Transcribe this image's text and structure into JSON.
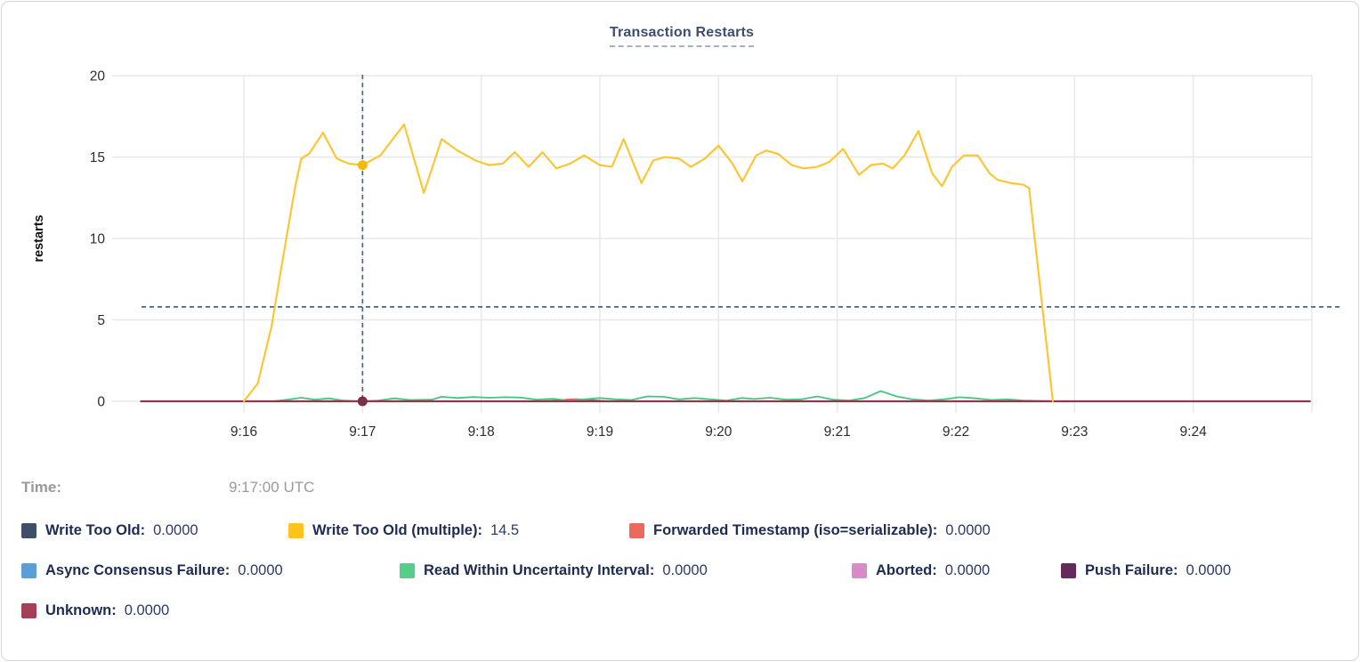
{
  "card": {
    "title": "Transaction Restarts"
  },
  "tooltip": {
    "time_label": "Time:",
    "time_value": "9:17:00 UTC"
  },
  "chart_data": {
    "type": "line",
    "title": "Transaction Restarts",
    "xlabel": "",
    "ylabel": "restarts",
    "ylim": [
      0,
      20
    ],
    "yticks": [
      0,
      5,
      10,
      15,
      20
    ],
    "xticks": [
      "9:16",
      "9:17",
      "9:18",
      "9:19",
      "9:20",
      "9:21",
      "9:22",
      "9:23",
      "9:24"
    ],
    "x_unit": "seconds relative to 9:16:00, x range approx 9:15:08 - 9:25:13",
    "grid": true,
    "legend_position": "bottom",
    "hover": {
      "time": "9:17:00 UTC",
      "t": 60,
      "crosshair_color": "#44678a",
      "guide_value": 5.8,
      "points": [
        {
          "series": "Write Too Old (multiple)",
          "value": 14.5,
          "dot_color": "#f5b90d"
        },
        {
          "series": "Unknown",
          "value": 0,
          "dot_color": "#7c2f47"
        }
      ]
    },
    "series": [
      {
        "name": "Write Too Old",
        "color": "#3f4e69",
        "width": 1.6,
        "points": [
          [
            -52,
            0
          ],
          [
            539,
            0
          ]
        ]
      },
      {
        "name": "Async Consensus Failure",
        "color": "#5c9fd6",
        "width": 1.6,
        "points": [
          [
            -52,
            0
          ],
          [
            539,
            0
          ]
        ]
      },
      {
        "name": "Aborted",
        "color": "#d88bc8",
        "width": 1.6,
        "points": [
          [
            -52,
            0
          ],
          [
            539,
            0
          ]
        ]
      },
      {
        "name": "Push Failure",
        "color": "#642a5c",
        "width": 1.6,
        "points": [
          [
            -52,
            0
          ],
          [
            539,
            0
          ]
        ]
      },
      {
        "name": "Forwarded Timestamp (iso=serializable)",
        "color": "#e2544e",
        "width": 1.8,
        "points": [
          [
            -52,
            0
          ],
          [
            150,
            0
          ],
          [
            157,
            0.05
          ],
          [
            163,
            0.1
          ],
          [
            168,
            0.13
          ],
          [
            175,
            0.08
          ],
          [
            182,
            0.02
          ],
          [
            188,
            0
          ],
          [
            539,
            0
          ]
        ]
      },
      {
        "name": "Read Within Uncertainty Interval",
        "color": "#49c47e",
        "width": 1.8,
        "points": [
          [
            -52,
            0
          ],
          [
            15,
            0
          ],
          [
            22,
            0.1
          ],
          [
            29,
            0.22
          ],
          [
            36,
            0.1
          ],
          [
            43,
            0.18
          ],
          [
            50,
            0.05
          ],
          [
            60,
            0
          ],
          [
            68,
            0.05
          ],
          [
            76,
            0.18
          ],
          [
            84,
            0.08
          ],
          [
            95,
            0.1
          ],
          [
            100,
            0.28
          ],
          [
            108,
            0.2
          ],
          [
            116,
            0.26
          ],
          [
            124,
            0.22
          ],
          [
            132,
            0.25
          ],
          [
            140,
            0.23
          ],
          [
            148,
            0.1
          ],
          [
            156,
            0.16
          ],
          [
            164,
            0.05
          ],
          [
            172,
            0.12
          ],
          [
            180,
            0.2
          ],
          [
            188,
            0.12
          ],
          [
            196,
            0.08
          ],
          [
            204,
            0.3
          ],
          [
            212,
            0.28
          ],
          [
            220,
            0.12
          ],
          [
            228,
            0.2
          ],
          [
            236,
            0.12
          ],
          [
            244,
            0.05
          ],
          [
            252,
            0.2
          ],
          [
            258,
            0.14
          ],
          [
            266,
            0.22
          ],
          [
            274,
            0.1
          ],
          [
            282,
            0.12
          ],
          [
            290,
            0.3
          ],
          [
            298,
            0.1
          ],
          [
            306,
            0.05
          ],
          [
            314,
            0.2
          ],
          [
            322,
            0.63
          ],
          [
            330,
            0.3
          ],
          [
            338,
            0.12
          ],
          [
            346,
            0.05
          ],
          [
            354,
            0.12
          ],
          [
            362,
            0.25
          ],
          [
            370,
            0.18
          ],
          [
            378,
            0.08
          ],
          [
            386,
            0.12
          ],
          [
            394,
            0.05
          ],
          [
            404,
            0.02
          ],
          [
            415,
            0
          ]
        ]
      },
      {
        "name": "Unknown",
        "color": "#8b3950",
        "width": 2.2,
        "points": [
          [
            -52,
            0
          ],
          [
            539,
            0
          ]
        ]
      },
      {
        "name": "Write Too Old (multiple)",
        "color": "#fdc42c",
        "width": 2.1,
        "points": [
          [
            0,
            0
          ],
          [
            7,
            1.1
          ],
          [
            14,
            4.6
          ],
          [
            21,
            9.7
          ],
          [
            26,
            13.2
          ],
          [
            29,
            14.9
          ],
          [
            33,
            15.2
          ],
          [
            40,
            16.5
          ],
          [
            47,
            14.9
          ],
          [
            53,
            14.6
          ],
          [
            60,
            14.5
          ],
          [
            69,
            15.1
          ],
          [
            81,
            17.0
          ],
          [
            91,
            12.8
          ],
          [
            100,
            16.1
          ],
          [
            108,
            15.4
          ],
          [
            117,
            14.8
          ],
          [
            124,
            14.5
          ],
          [
            131,
            14.6
          ],
          [
            137,
            15.3
          ],
          [
            144,
            14.4
          ],
          [
            151,
            15.3
          ],
          [
            158,
            14.3
          ],
          [
            165,
            14.6
          ],
          [
            172,
            15.1
          ],
          [
            180,
            14.5
          ],
          [
            186,
            14.4
          ],
          [
            192,
            16.1
          ],
          [
            201,
            13.4
          ],
          [
            207,
            14.8
          ],
          [
            213,
            15.0
          ],
          [
            220,
            14.9
          ],
          [
            226,
            14.4
          ],
          [
            233,
            14.9
          ],
          [
            240,
            15.7
          ],
          [
            247,
            14.6
          ],
          [
            252,
            13.5
          ],
          [
            259,
            15.1
          ],
          [
            264,
            15.4
          ],
          [
            270,
            15.2
          ],
          [
            277,
            14.5
          ],
          [
            283,
            14.3
          ],
          [
            290,
            14.4
          ],
          [
            296,
            14.7
          ],
          [
            303,
            15.5
          ],
          [
            311,
            13.9
          ],
          [
            317,
            14.5
          ],
          [
            323,
            14.6
          ],
          [
            328,
            14.3
          ],
          [
            334,
            15.1
          ],
          [
            341,
            16.6
          ],
          [
            348,
            14.0
          ],
          [
            353,
            13.2
          ],
          [
            358,
            14.4
          ],
          [
            364,
            15.1
          ],
          [
            371,
            15.1
          ],
          [
            377,
            14.0
          ],
          [
            381,
            13.6
          ],
          [
            388,
            13.4
          ],
          [
            394,
            13.3
          ],
          [
            397,
            13.1
          ],
          [
            409,
            0
          ]
        ]
      }
    ]
  },
  "legend": {
    "rows": [
      [
        {
          "label": "Write Too Old:",
          "value": "0.0000",
          "color": "#3f4e69"
        },
        {
          "label": "Write Too Old (multiple):",
          "value": "14.5",
          "color": "#fcc41d"
        },
        {
          "label": "Forwarded Timestamp (iso=serializable):",
          "value": "0.0000",
          "color": "#ec695d"
        }
      ],
      [
        {
          "label": "Async Consensus Failure:",
          "value": "0.0000",
          "color": "#5c9fd6"
        },
        {
          "label": "Read Within Uncertainty Interval:",
          "value": "0.0000",
          "color": "#53cf8b"
        },
        {
          "label": "Aborted:",
          "value": "0.0000",
          "color": "#d88bc8"
        },
        {
          "label": "Push Failure:",
          "value": "0.0000",
          "color": "#642a5c"
        }
      ],
      [
        {
          "label": "Unknown:",
          "value": "0.0000",
          "color": "#a43e59"
        }
      ]
    ]
  },
  "colors": {
    "title_text": "#3b4d71",
    "grid": "#e8e8e8",
    "axis_text": "#2d2d2d",
    "crosshair": "#44678a",
    "legend_label": "#1e2b52",
    "legend_value": "#2c3a68",
    "time_text": "#9a9a9a",
    "card_border": "#d5d5d5"
  }
}
